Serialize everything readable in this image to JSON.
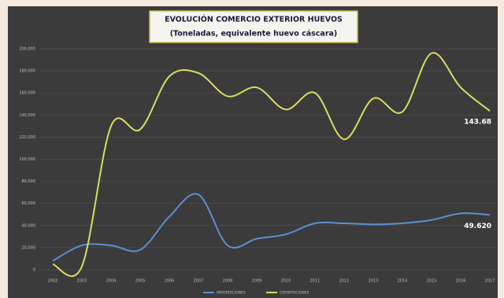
{
  "chart_data": {
    "type": "line",
    "title": "EVOLUCIÓN COMERCIO EXTERIOR HUEVOS",
    "subtitle": "(Toneladas, equivalente huevo cáscara)",
    "categories": [
      "2002",
      "2003",
      "2004",
      "2005",
      "2006",
      "2007",
      "2008",
      "2009",
      "2010",
      "2011",
      "2012",
      "2013",
      "2014",
      "2015",
      "2016",
      "2017"
    ],
    "series": [
      {
        "name": "IMPORTACIONES",
        "color": "#5b8fd0",
        "values": [
          8000,
          22000,
          22000,
          18000,
          48000,
          68000,
          22000,
          28000,
          32000,
          42000,
          42000,
          41000,
          42000,
          45000,
          51000,
          49620
        ],
        "value_labels": [
          null,
          null,
          null,
          null,
          null,
          null,
          null,
          null,
          null,
          null,
          null,
          null,
          null,
          null,
          null,
          "49.620"
        ]
      },
      {
        "name": "EXPORTACIONES",
        "color": "#d7dd63",
        "values": [
          5000,
          3000,
          130000,
          127000,
          175000,
          178000,
          157000,
          165000,
          145000,
          160000,
          118000,
          155000,
          143000,
          196000,
          165000,
          143680
        ],
        "value_labels": [
          null,
          null,
          null,
          null,
          null,
          null,
          null,
          null,
          null,
          null,
          null,
          null,
          null,
          null,
          null,
          "143.68"
        ]
      }
    ],
    "ylim": [
      0,
      200000
    ],
    "yticks": [
      0,
      {
        "value": 20000,
        "label": "20,000"
      },
      {
        "value": 40000,
        "label": "40,000"
      },
      {
        "value": 60000,
        "label": "60,000"
      },
      {
        "value": 80000,
        "label": "80,000"
      },
      {
        "value": 100000,
        "label": "100,000"
      },
      {
        "value": 120000,
        "label": "120,000"
      },
      {
        "value": 140000,
        "label": "140,000"
      },
      {
        "value": 160000,
        "label": "160,000"
      },
      {
        "value": 180000,
        "label": "180,000"
      },
      {
        "value": 200000,
        "label": "200,000"
      }
    ],
    "grid": true
  }
}
